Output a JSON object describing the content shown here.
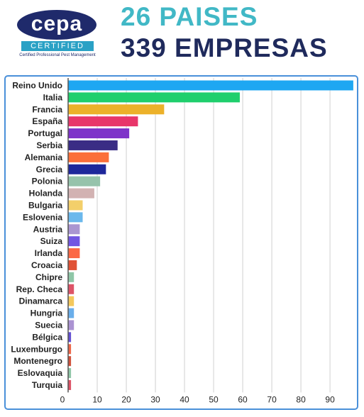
{
  "header": {
    "logo_word": "cepa",
    "logo_certified": "CERTIFIED",
    "logo_tagline": "Certified Professional Pest Management",
    "headline_countries": "26 PAISES",
    "headline_companies": "339 EMPRESAS"
  },
  "colors": {
    "headline_teal": "#41b8c6",
    "headline_navy": "#1f2a5c",
    "frame_blue": "#4a90d9"
  },
  "chart_data": {
    "type": "bar",
    "orientation": "horizontal",
    "grid": true,
    "xlim": [
      0,
      99
    ],
    "xticks": [
      0,
      10,
      20,
      30,
      40,
      50,
      60,
      70,
      80,
      90
    ],
    "categories": [
      "Reino Unido",
      "Italia",
      "Francia",
      "España",
      "Portugal",
      "Serbia",
      "Alemania",
      "Grecia",
      "Polonia",
      "Holanda",
      "Bulgaria",
      "Eslovenia",
      "Austria",
      "Suiza",
      "Irlanda",
      "Croacia",
      "Chipre",
      "Rep. Checa",
      "Dinamarca",
      "Hungria",
      "Suecia",
      "Bélgica",
      "Luxemburgo",
      "Montenegro",
      "Eslovaquia",
      "Turquia"
    ],
    "values": [
      98,
      59,
      33,
      24,
      21,
      17,
      14,
      13,
      11,
      9,
      5,
      5,
      4,
      4,
      4,
      3,
      2,
      2,
      2,
      2,
      2,
      1,
      1,
      1,
      1,
      1
    ],
    "bar_colors": [
      "#1ea7f2",
      "#1fcf6d",
      "#ecb12a",
      "#e8366a",
      "#7e33c9",
      "#3a2d85",
      "#fb6f3a",
      "#1e279b",
      "#96c3ab",
      "#d2b2b2",
      "#f3cf6a",
      "#6bb8ec",
      "#aa96d1",
      "#7256e2",
      "#fb6845",
      "#e05236",
      "#8fc6a7",
      "#dd5467",
      "#f4c85c",
      "#6aaeea",
      "#ab93d2",
      "#6451d3",
      "#ec6648",
      "#d0523c",
      "#8fc6a7",
      "#dd5467"
    ]
  }
}
